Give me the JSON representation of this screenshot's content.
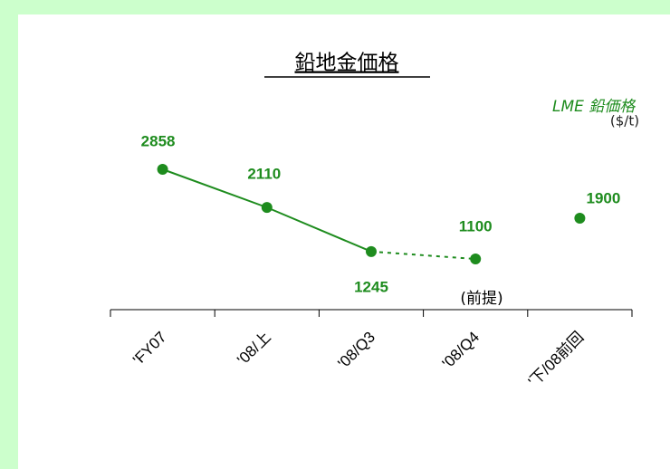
{
  "chart_data": {
    "type": "line",
    "title": "鉛地金価格",
    "annotations": [
      "LME 鉛価格",
      "($/t)",
      "(前提)"
    ],
    "categories": [
      "'FY07",
      "'08/上",
      "'08/Q3",
      "'08/Q4",
      "'下/08前回"
    ],
    "series": [
      {
        "name": "LME 鉛価格",
        "color": "#1e8c1e",
        "values": [
          2858,
          2110,
          1245,
          1100,
          1900
        ]
      }
    ],
    "segments": [
      {
        "from": 0,
        "to": 2,
        "style": "solid"
      },
      {
        "from": 2,
        "to": 3,
        "style": "dashed"
      }
    ]
  }
}
